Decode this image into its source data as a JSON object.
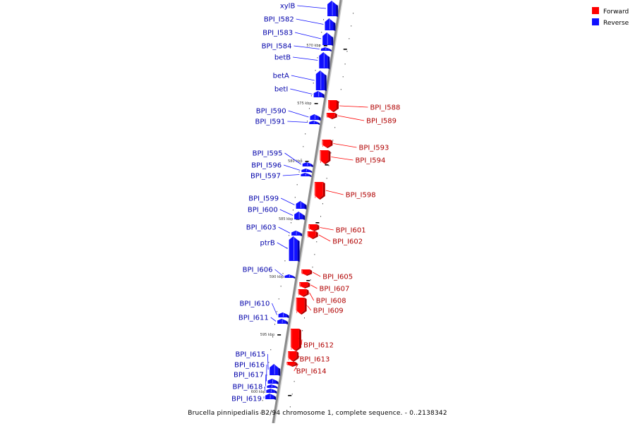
{
  "colors": {
    "forward": "#ff0000",
    "forward_dark": "#b00000",
    "forward_light": "#ff6a6a",
    "reverse": "#1010ff",
    "reverse_dark": "#0000aa",
    "reverse_light": "#7a7aff",
    "backbone": "#8a8a8a"
  },
  "legend": {
    "forward_label": "Forward",
    "reverse_label": "Reverse"
  },
  "caption": "Brucella pinnipedialis B2/94 chromosome 1, complete sequence. - 0..2138342",
  "kbp_markers": [
    "570 kbp",
    "575 kbp",
    "580 kbp",
    "585 kbp",
    "590 kbp",
    "595 kbp",
    "600 kbp"
  ],
  "reverse_genes": [
    {
      "name": "xylB"
    },
    {
      "name": "BPI_I582"
    },
    {
      "name": "BPI_I583"
    },
    {
      "name": "BPI_I584"
    },
    {
      "name": "betB"
    },
    {
      "name": "betA"
    },
    {
      "name": "betI"
    },
    {
      "name": "BPI_I590"
    },
    {
      "name": "BPI_I591"
    },
    {
      "name": "BPI_I595"
    },
    {
      "name": "BPI_I596"
    },
    {
      "name": "BPI_I597"
    },
    {
      "name": "BPI_I599"
    },
    {
      "name": "BPI_I600"
    },
    {
      "name": "BPI_I603"
    },
    {
      "name": "ptrB"
    },
    {
      "name": "BPI_I606"
    },
    {
      "name": "BPI_I610"
    },
    {
      "name": "BPI_I611"
    },
    {
      "name": "BPI_I615"
    },
    {
      "name": "BPI_I616"
    },
    {
      "name": "BPI_I617"
    },
    {
      "name": "BPI_I618"
    },
    {
      "name": "BPI_I619"
    }
  ],
  "forward_genes": [
    {
      "name": "BPI_I588"
    },
    {
      "name": "BPI_I589"
    },
    {
      "name": "BPI_I593"
    },
    {
      "name": "BPI_I594"
    },
    {
      "name": "BPI_I598"
    },
    {
      "name": "BPI_I601"
    },
    {
      "name": "BPI_I602"
    },
    {
      "name": "BPI_I605"
    },
    {
      "name": "BPI_I607"
    },
    {
      "name": "BPI_I608"
    },
    {
      "name": "BPI_I609"
    },
    {
      "name": "BPI_I612"
    },
    {
      "name": "BPI_I613"
    },
    {
      "name": "BPI_I614"
    }
  ]
}
